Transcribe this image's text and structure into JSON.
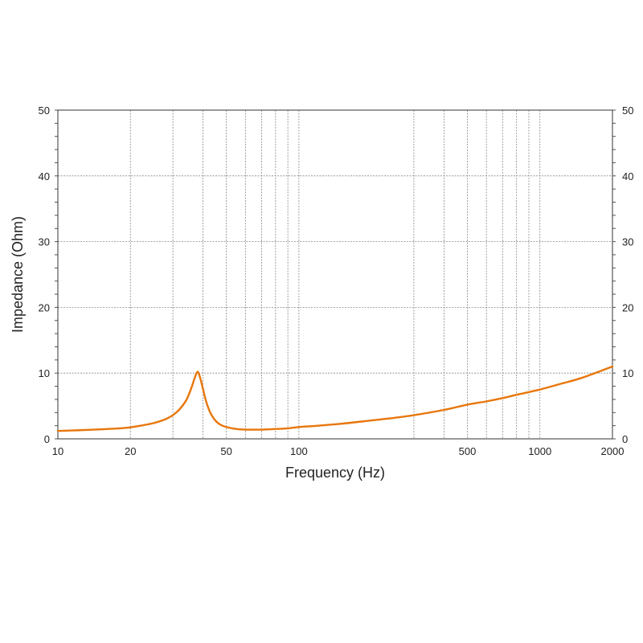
{
  "chart_data": {
    "type": "line",
    "title": "",
    "xlabel": "Frequency (Hz)",
    "ylabel": "Impedance (Ohm)",
    "x_scale": "log",
    "xlim": [
      10,
      2000
    ],
    "ylim": [
      0,
      50
    ],
    "x_ticks": [
      "10",
      "20",
      "50",
      "100",
      "500",
      "1000",
      "2000"
    ],
    "y_ticks": [
      "0",
      "10",
      "20",
      "30",
      "40",
      "50"
    ],
    "x_gridlines": [
      20,
      30,
      40,
      50,
      60,
      70,
      80,
      90,
      100,
      300,
      400,
      500,
      600,
      700,
      800,
      900,
      1000
    ],
    "y_gridlines": [
      10,
      20,
      30,
      40
    ],
    "grid": true,
    "legend": "none",
    "series": [
      {
        "color": "#e8760c",
        "x": [
          10,
          12,
          15,
          18,
          20,
          22,
          25,
          28,
          30,
          32,
          34,
          35,
          36,
          37,
          38,
          39,
          40,
          41,
          42,
          43,
          44,
          45,
          47,
          50,
          55,
          60,
          65,
          70,
          80,
          90,
          100,
          120,
          150,
          200,
          250,
          300,
          400,
          500,
          600,
          700,
          800,
          1000,
          1200,
          1500,
          2000
        ],
        "y": [
          1.2,
          1.3,
          1.45,
          1.6,
          1.75,
          2.0,
          2.4,
          3.0,
          3.6,
          4.5,
          5.8,
          6.8,
          8.0,
          9.3,
          10.2,
          9.2,
          7.6,
          6.0,
          4.8,
          3.9,
          3.3,
          2.8,
          2.2,
          1.8,
          1.5,
          1.4,
          1.4,
          1.4,
          1.5,
          1.6,
          1.8,
          2.0,
          2.3,
          2.8,
          3.2,
          3.6,
          4.4,
          5.2,
          5.7,
          6.2,
          6.7,
          7.5,
          8.3,
          9.3,
          11.0
        ]
      }
    ]
  }
}
